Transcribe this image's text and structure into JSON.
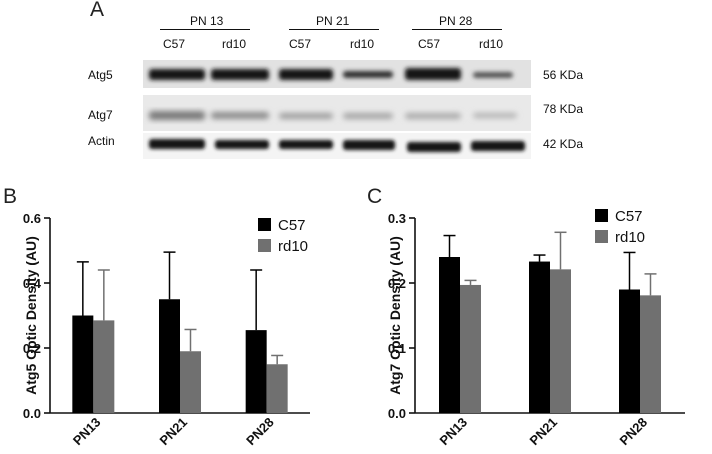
{
  "panel_a": {
    "letter": "A",
    "groups": [
      {
        "label": "PN 13",
        "lanes": [
          "C57",
          "rd10"
        ]
      },
      {
        "label": "PN 21",
        "lanes": [
          "C57",
          "rd10"
        ]
      },
      {
        "label": "PN 28",
        "lanes": [
          "C57",
          "rd10"
        ]
      }
    ],
    "rows": [
      {
        "protein": "Atg5",
        "weight": "56 KDa"
      },
      {
        "protein": "Atg7",
        "weight": "78 KDa"
      },
      {
        "protein": "Actin",
        "weight": "42 KDa"
      }
    ]
  },
  "colors": {
    "c57": "#000000",
    "rd10": "#707070",
    "axis": "#111111"
  },
  "chart_data": [
    {
      "panel": "B",
      "type": "bar",
      "ylabel": "Atg5 Optic Density (AU)",
      "categories": [
        "PN13",
        "PN21",
        "PN28"
      ],
      "ylim": [
        0,
        0.6
      ],
      "yticks": [
        "0.0",
        "0.2",
        "0.4",
        "0.6"
      ],
      "legend": "top-right",
      "series": [
        {
          "name": "C57",
          "values": [
            0.3,
            0.35,
            0.255
          ],
          "errors": [
            0.165,
            0.145,
            0.185
          ]
        },
        {
          "name": "rd10",
          "values": [
            0.285,
            0.19,
            0.15
          ],
          "errors": [
            0.155,
            0.067,
            0.027
          ]
        }
      ]
    },
    {
      "panel": "C",
      "type": "bar",
      "ylabel": "Atg7 Optic Density (AU)",
      "categories": [
        "PN13",
        "PN21",
        "PN28"
      ],
      "ylim": [
        0,
        0.3
      ],
      "yticks": [
        "0.0",
        "0.1",
        "0.2",
        "0.3"
      ],
      "legend": "top-right",
      "series": [
        {
          "name": "C57",
          "values": [
            0.24,
            0.233,
            0.19
          ],
          "errors": [
            0.033,
            0.01,
            0.057
          ]
        },
        {
          "name": "rd10",
          "values": [
            0.197,
            0.221,
            0.181
          ],
          "errors": [
            0.007,
            0.057,
            0.033
          ]
        }
      ]
    }
  ]
}
